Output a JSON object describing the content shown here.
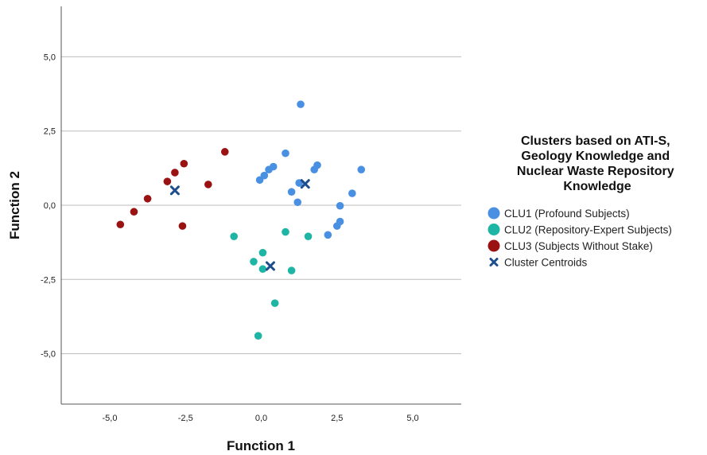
{
  "chart_data": {
    "type": "scatter",
    "xlabel": "Function 1",
    "ylabel": "Function 2",
    "xlim": [
      -6.6,
      6.6
    ],
    "ylim": [
      -6.7,
      6.7
    ],
    "x_ticks": [
      "-5,0",
      "-2,5",
      "0,0",
      "2,5",
      "5,0"
    ],
    "x_tick_values": [
      -5,
      -2.5,
      0,
      2.5,
      5
    ],
    "y_ticks": [
      "5,0",
      "2,5",
      "0,0",
      "-2,5",
      "-5,0"
    ],
    "y_tick_values": [
      5,
      2.5,
      0,
      -2.5,
      -5
    ],
    "horizontal_grid": true,
    "legend_position": "right",
    "legend_title": "Clusters based on ATI-S, Geology Knowledge and Nuclear Waste Repository Knowledge",
    "legend_title_lines": [
      "Clusters based on ATI-S,",
      "Geology Knowledge and",
      "Nuclear Waste Repository",
      "Knowledge"
    ],
    "series": [
      {
        "name": "CLU1 (Profound Subjects)",
        "color": "#4a90e2",
        "marker": "circle",
        "points": [
          [
            1.3,
            3.4
          ],
          [
            0.8,
            1.75
          ],
          [
            1.85,
            1.35
          ],
          [
            1.75,
            1.2
          ],
          [
            3.3,
            1.2
          ],
          [
            0.4,
            1.3
          ],
          [
            0.25,
            1.2
          ],
          [
            0.1,
            1.0
          ],
          [
            -0.05,
            0.85
          ],
          [
            1.25,
            0.75
          ],
          [
            1.0,
            0.45
          ],
          [
            3.0,
            0.4
          ],
          [
            1.2,
            0.1
          ],
          [
            2.6,
            -0.02
          ],
          [
            2.6,
            -0.55
          ],
          [
            2.5,
            -0.7
          ],
          [
            2.2,
            -1.0
          ]
        ]
      },
      {
        "name": "CLU2 (Repository-Expert Subjects)",
        "color": "#1fb5a5",
        "marker": "circle",
        "points": [
          [
            -0.9,
            -1.05
          ],
          [
            0.8,
            -0.9
          ],
          [
            1.55,
            -1.05
          ],
          [
            0.05,
            -1.6
          ],
          [
            -0.25,
            -1.9
          ],
          [
            0.05,
            -2.15
          ],
          [
            1.0,
            -2.2
          ],
          [
            0.45,
            -3.3
          ],
          [
            -0.1,
            -4.4
          ]
        ]
      },
      {
        "name": "CLU3 (Subjects Without Stake)",
        "color": "#9b1212",
        "marker": "circle",
        "points": [
          [
            -1.2,
            1.8
          ],
          [
            -2.55,
            1.4
          ],
          [
            -2.85,
            1.1
          ],
          [
            -3.1,
            0.8
          ],
          [
            -1.75,
            0.7
          ],
          [
            -3.75,
            0.22
          ],
          [
            -4.2,
            -0.22
          ],
          [
            -4.65,
            -0.65
          ],
          [
            -2.6,
            -0.7
          ]
        ]
      },
      {
        "name": "Cluster Centroids",
        "color": "#1f4e8c",
        "marker": "x",
        "points": [
          [
            -2.85,
            0.5
          ],
          [
            1.45,
            0.72
          ],
          [
            0.3,
            -2.05
          ]
        ]
      }
    ]
  }
}
